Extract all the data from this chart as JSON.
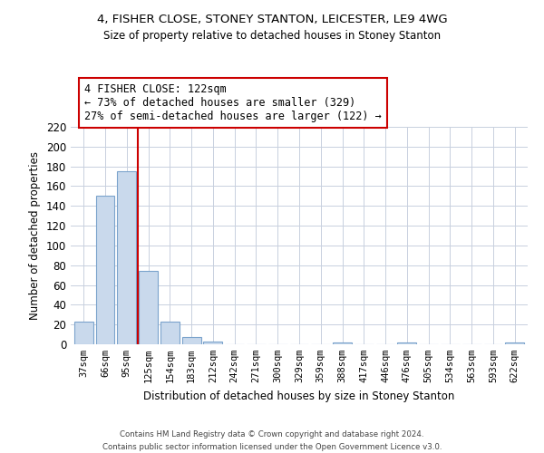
{
  "title": "4, FISHER CLOSE, STONEY STANTON, LEICESTER, LE9 4WG",
  "subtitle": "Size of property relative to detached houses in Stoney Stanton",
  "xlabel": "Distribution of detached houses by size in Stoney Stanton",
  "ylabel": "Number of detached properties",
  "bin_labels": [
    "37sqm",
    "66sqm",
    "95sqm",
    "125sqm",
    "154sqm",
    "183sqm",
    "212sqm",
    "242sqm",
    "271sqm",
    "300sqm",
    "329sqm",
    "359sqm",
    "388sqm",
    "417sqm",
    "446sqm",
    "476sqm",
    "505sqm",
    "534sqm",
    "563sqm",
    "593sqm",
    "622sqm"
  ],
  "bar_heights": [
    23,
    150,
    175,
    74,
    23,
    7,
    3,
    0,
    0,
    0,
    0,
    0,
    2,
    0,
    0,
    2,
    0,
    0,
    0,
    0,
    2
  ],
  "bar_color": "#c9d9ec",
  "bar_edge_color": "#7ba3cc",
  "vline_x": 2.5,
  "vline_color": "#cc0000",
  "annotation_title": "4 FISHER CLOSE: 122sqm",
  "annotation_line1": "← 73% of detached houses are smaller (329)",
  "annotation_line2": "27% of semi-detached houses are larger (122) →",
  "annotation_box_color": "#ffffff",
  "annotation_box_edge": "#cc0000",
  "ylim": [
    0,
    220
  ],
  "yticks": [
    0,
    20,
    40,
    60,
    80,
    100,
    120,
    140,
    160,
    180,
    200,
    220
  ],
  "footer1": "Contains HM Land Registry data © Crown copyright and database right 2024.",
  "footer2": "Contains public sector information licensed under the Open Government Licence v3.0."
}
